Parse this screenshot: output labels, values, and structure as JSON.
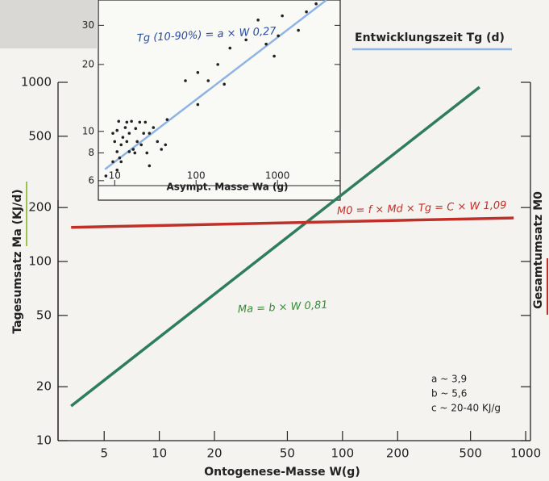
{
  "chart_data": [
    {
      "type": "line",
      "xlabel": "Ontogenese-Masse W(g)",
      "ylabel": "Tagesumsatz Ma (KJ/d)",
      "y2label": "Gesamtumsatz M0",
      "xscale": "log",
      "yscale": "log",
      "xlim": [
        2.8,
        1062
      ],
      "ylim": [
        10,
        1000
      ],
      "xticks": [
        5,
        10,
        20,
        50,
        100,
        200,
        500,
        1000
      ],
      "yticks": [
        10,
        20,
        50,
        100,
        200,
        500,
        1000
      ],
      "series": [
        {
          "name": "Ma = b × W 0,81",
          "color": "#2e7d5b",
          "x": [
            3.3,
            560
          ],
          "values": [
            15.6,
            940
          ]
        },
        {
          "name": "M0 = f × Md × Tg = C × W 1,09",
          "color": "#c0302a",
          "x": [
            3.3,
            860
          ],
          "values": [
            155,
            175
          ]
        }
      ],
      "constants": [
        "a ~ 3,9",
        "b ~ 5,6",
        "c ~ 20-40 KJ/g"
      ]
    },
    {
      "type": "scatter",
      "xlabel": "Asympt. Masse Wa (g)",
      "annotation": "Tg (10-90%) = a × W 0,27",
      "xscale": "log",
      "yscale": "log",
      "xlim": [
        6.3,
        5900
      ],
      "ylim": [
        5.7,
        39
      ],
      "xticks": [
        10,
        100,
        1000
      ],
      "yticks": [
        6,
        8,
        10,
        20,
        30
      ],
      "color": "#222222",
      "x": [
        7.8,
        10.7,
        11.5,
        10.7,
        12,
        9.5,
        10.7,
        12.6,
        14.1,
        15.1,
        13.5,
        16.1,
        18.1,
        18.9,
        16.9,
        21.2,
        22.7,
        23.8,
        20.3,
        26.7,
        29.9,
        33.5,
        37.5,
        42.1,
        24.9,
        15.1,
        12,
        10,
        11.2,
        14.1,
        17.7,
        44.1,
        74,
        105,
        105,
        141,
        185,
        261,
        222,
        411,
        578,
        726,
        1023,
        912,
        1146,
        1808,
        2270,
        2985,
        9.5,
        26.7
      ],
      "values": [
        6.3,
        6.7,
        7.6,
        8.1,
        8.7,
        9.8,
        10.1,
        9.4,
        9.0,
        9.8,
        10.4,
        11.1,
        10.3,
        9.0,
        8.3,
        8.7,
        9.8,
        11.0,
        11.0,
        9.8,
        10.4,
        9.0,
        8.3,
        8.7,
        8.0,
        8.1,
        7.3,
        9.0,
        11.1,
        11.0,
        8.0,
        11.3,
        16.9,
        13.2,
        18.4,
        16.9,
        20.0,
        23.7,
        16.3,
        25.8,
        31.7,
        24.7,
        26.9,
        21.8,
        33.1,
        28.5,
        34.5,
        37.5,
        7.3,
        7.0
      ],
      "fit": {
        "name": "Entwicklungszeit Tg (d)",
        "color": "#8fb4e3",
        "x": [
          7.6,
          4000
        ],
        "values": [
          6.75,
          39
        ]
      }
    }
  ]
}
